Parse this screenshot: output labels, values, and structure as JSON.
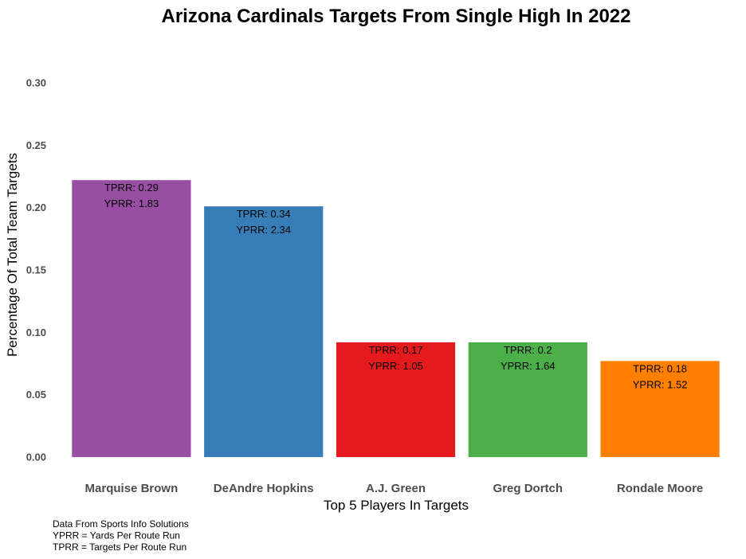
{
  "chart_data": {
    "type": "bar",
    "title": "Arizona Cardinals Targets From Single High In 2022",
    "xlabel": "Top 5 Players In Targets",
    "ylabel": "Percentage Of Total Team Targets",
    "ylim": [
      0,
      0.3
    ],
    "yticks": [
      "0.00",
      "0.05",
      "0.10",
      "0.15",
      "0.20",
      "0.25",
      "0.30"
    ],
    "grid": false,
    "categories": [
      "Marquise Brown",
      "DeAndre Hopkins",
      "A.J. Green",
      "Greg Dortch",
      "Rondale Moore"
    ],
    "values": [
      0.222,
      0.201,
      0.092,
      0.092,
      0.077
    ],
    "colors": [
      "#984EA3",
      "#377EB8",
      "#E41A1C",
      "#4DAF4A",
      "#FF7F00"
    ],
    "labels": [
      {
        "tprr": "TPRR: 0.29",
        "yprr": "YPRR: 1.83"
      },
      {
        "tprr": "TPRR: 0.34",
        "yprr": "YPRR: 2.34"
      },
      {
        "tprr": "TPRR: 0.17",
        "yprr": "YPRR: 1.05"
      },
      {
        "tprr": "TPRR: 0.2",
        "yprr": "YPRR: 1.64"
      },
      {
        "tprr": "TPRR: 0.18",
        "yprr": "YPRR: 1.52"
      }
    ],
    "caption": [
      "Data From Sports Info Solutions",
      "YPRR = Yards Per Route Run",
      "TPRR = Targets Per Route Run"
    ]
  }
}
